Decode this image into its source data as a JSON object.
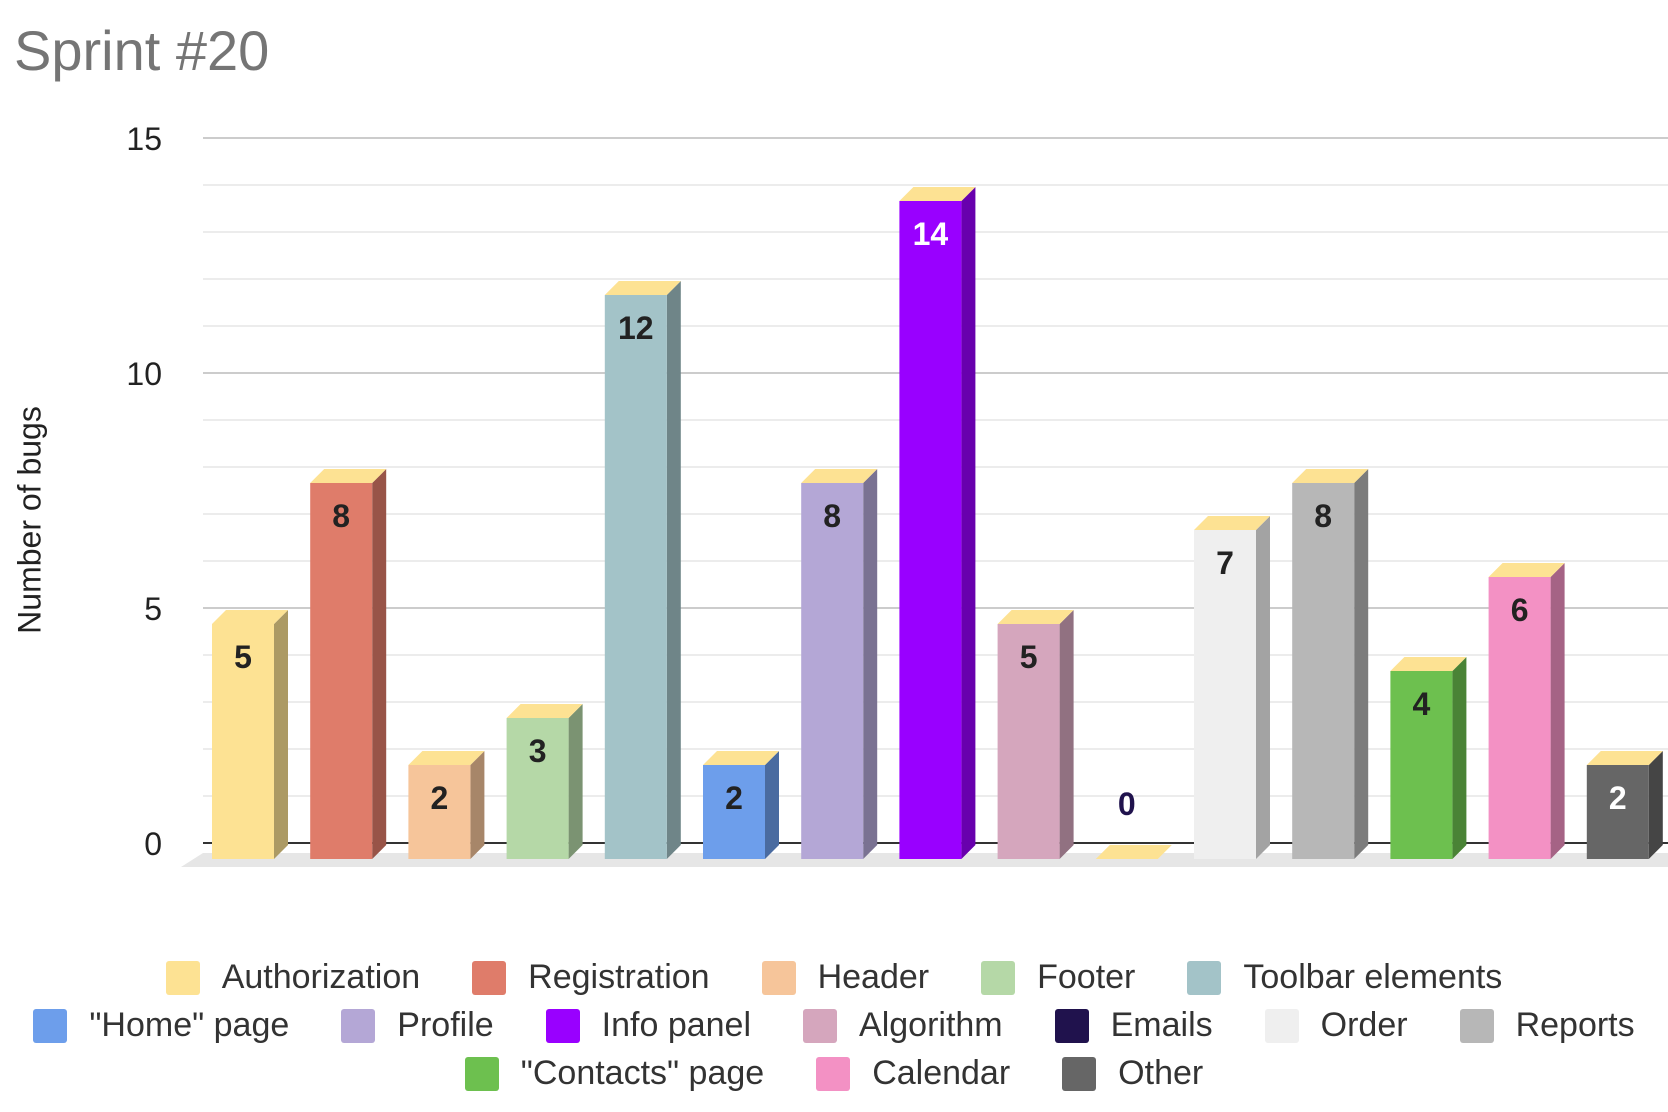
{
  "chart_data": {
    "type": "bar",
    "title": "Sprint #20",
    "ylabel": "Number of bugs",
    "xlabel": "",
    "ylim": [
      0,
      15
    ],
    "yticks": [
      0,
      5,
      10,
      15
    ],
    "grid": true,
    "legend_position": "bottom",
    "categories": [
      "Authorization",
      "Registration",
      "Header",
      "Footer",
      "Toolbar elements",
      "\"Home\" page",
      "Profile",
      "Info panel",
      "Algorithm",
      "Emails",
      "Order",
      "Reports",
      "\"Contacts\" page",
      "Calendar",
      "Other"
    ],
    "values": [
      5,
      8,
      2,
      3,
      12,
      2,
      8,
      14,
      5,
      0,
      7,
      8,
      4,
      6,
      2
    ],
    "data_labels": [
      "5",
      "8",
      "2",
      "3",
      "12",
      "2",
      "8",
      "14",
      "5",
      "0",
      "7",
      "8",
      "4",
      "6",
      "2"
    ],
    "colors": [
      "#fde293",
      "#df7c6a",
      "#f6c59a",
      "#b5d8a7",
      "#a3c3c8",
      "#6d9eeb",
      "#b4a7d6",
      "#9900ff",
      "#d5a6bd",
      "#20124d",
      "#efefef",
      "#b7b7b7",
      "#6dc04f",
      "#f391c4",
      "#666666"
    ],
    "label_colors": [
      "#222222",
      "#222222",
      "#222222",
      "#222222",
      "#222222",
      "#222222",
      "#222222",
      "#ffffff",
      "#222222",
      "#20124d",
      "#222222",
      "#222222",
      "#222222",
      "#222222",
      "#ffffff"
    ],
    "top_face_color": "#fde293"
  },
  "legend": {
    "rows": [
      [
        {
          "label": "Authorization",
          "color": "#fde293"
        },
        {
          "label": "Registration",
          "color": "#df7c6a"
        },
        {
          "label": "Header",
          "color": "#f6c59a"
        },
        {
          "label": "Footer",
          "color": "#b5d8a7"
        },
        {
          "label": "Toolbar elements",
          "color": "#a3c3c8"
        }
      ],
      [
        {
          "label": "\"Home\" page",
          "color": "#6d9eeb"
        },
        {
          "label": "Profile",
          "color": "#b4a7d6"
        },
        {
          "label": "Info panel",
          "color": "#9900ff"
        },
        {
          "label": "Algorithm",
          "color": "#d5a6bd"
        },
        {
          "label": "Emails",
          "color": "#20124d"
        },
        {
          "label": "Order",
          "color": "#efefef"
        },
        {
          "label": "Reports",
          "color": "#b7b7b7"
        }
      ],
      [
        {
          "label": "\"Contacts\" page",
          "color": "#6dc04f"
        },
        {
          "label": "Calendar",
          "color": "#f391c4"
        },
        {
          "label": "Other",
          "color": "#666666"
        }
      ]
    ]
  }
}
